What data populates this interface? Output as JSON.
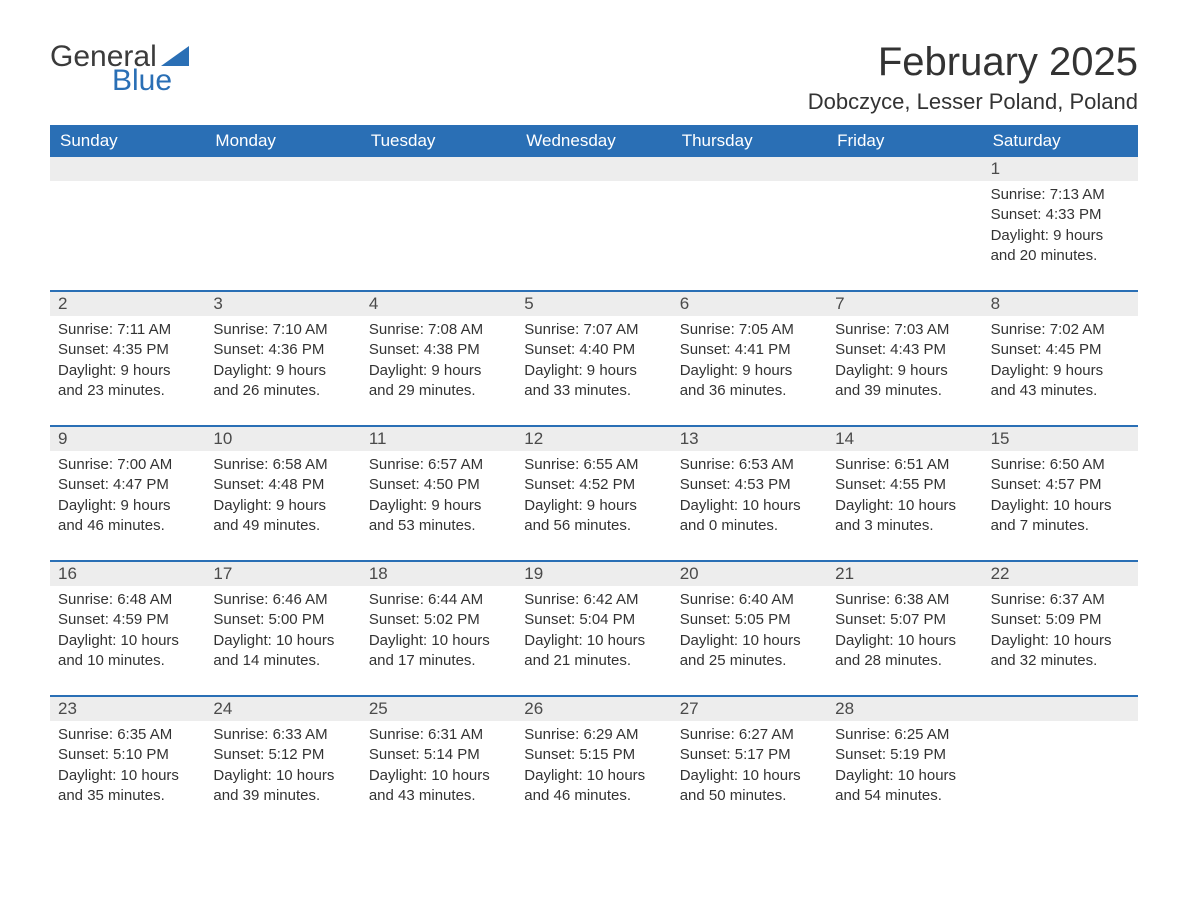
{
  "brand": {
    "general": "General",
    "blue": "Blue",
    "flag_color": "#2a6fb5"
  },
  "title": "February 2025",
  "location": "Dobczyce, Lesser Poland, Poland",
  "theme": {
    "header_bg": "#2a6fb5",
    "header_fg": "#ffffff",
    "band_bg": "#ededed",
    "rule_color": "#2a6fb5",
    "body_bg": "#ffffff",
    "text_color": "#333333",
    "title_fontsize": 40,
    "location_fontsize": 22,
    "dow_fontsize": 17,
    "daynum_fontsize": 17,
    "data_fontsize": 15
  },
  "dow": [
    "Sunday",
    "Monday",
    "Tuesday",
    "Wednesday",
    "Thursday",
    "Friday",
    "Saturday"
  ],
  "weeks": [
    [
      null,
      null,
      null,
      null,
      null,
      null,
      {
        "n": "1",
        "sunrise": "Sunrise: 7:13 AM",
        "sunset": "Sunset: 4:33 PM",
        "daylight1": "Daylight: 9 hours",
        "daylight2": "and 20 minutes."
      }
    ],
    [
      {
        "n": "2",
        "sunrise": "Sunrise: 7:11 AM",
        "sunset": "Sunset: 4:35 PM",
        "daylight1": "Daylight: 9 hours",
        "daylight2": "and 23 minutes."
      },
      {
        "n": "3",
        "sunrise": "Sunrise: 7:10 AM",
        "sunset": "Sunset: 4:36 PM",
        "daylight1": "Daylight: 9 hours",
        "daylight2": "and 26 minutes."
      },
      {
        "n": "4",
        "sunrise": "Sunrise: 7:08 AM",
        "sunset": "Sunset: 4:38 PM",
        "daylight1": "Daylight: 9 hours",
        "daylight2": "and 29 minutes."
      },
      {
        "n": "5",
        "sunrise": "Sunrise: 7:07 AM",
        "sunset": "Sunset: 4:40 PM",
        "daylight1": "Daylight: 9 hours",
        "daylight2": "and 33 minutes."
      },
      {
        "n": "6",
        "sunrise": "Sunrise: 7:05 AM",
        "sunset": "Sunset: 4:41 PM",
        "daylight1": "Daylight: 9 hours",
        "daylight2": "and 36 minutes."
      },
      {
        "n": "7",
        "sunrise": "Sunrise: 7:03 AM",
        "sunset": "Sunset: 4:43 PM",
        "daylight1": "Daylight: 9 hours",
        "daylight2": "and 39 minutes."
      },
      {
        "n": "8",
        "sunrise": "Sunrise: 7:02 AM",
        "sunset": "Sunset: 4:45 PM",
        "daylight1": "Daylight: 9 hours",
        "daylight2": "and 43 minutes."
      }
    ],
    [
      {
        "n": "9",
        "sunrise": "Sunrise: 7:00 AM",
        "sunset": "Sunset: 4:47 PM",
        "daylight1": "Daylight: 9 hours",
        "daylight2": "and 46 minutes."
      },
      {
        "n": "10",
        "sunrise": "Sunrise: 6:58 AM",
        "sunset": "Sunset: 4:48 PM",
        "daylight1": "Daylight: 9 hours",
        "daylight2": "and 49 minutes."
      },
      {
        "n": "11",
        "sunrise": "Sunrise: 6:57 AM",
        "sunset": "Sunset: 4:50 PM",
        "daylight1": "Daylight: 9 hours",
        "daylight2": "and 53 minutes."
      },
      {
        "n": "12",
        "sunrise": "Sunrise: 6:55 AM",
        "sunset": "Sunset: 4:52 PM",
        "daylight1": "Daylight: 9 hours",
        "daylight2": "and 56 minutes."
      },
      {
        "n": "13",
        "sunrise": "Sunrise: 6:53 AM",
        "sunset": "Sunset: 4:53 PM",
        "daylight1": "Daylight: 10 hours",
        "daylight2": "and 0 minutes."
      },
      {
        "n": "14",
        "sunrise": "Sunrise: 6:51 AM",
        "sunset": "Sunset: 4:55 PM",
        "daylight1": "Daylight: 10 hours",
        "daylight2": "and 3 minutes."
      },
      {
        "n": "15",
        "sunrise": "Sunrise: 6:50 AM",
        "sunset": "Sunset: 4:57 PM",
        "daylight1": "Daylight: 10 hours",
        "daylight2": "and 7 minutes."
      }
    ],
    [
      {
        "n": "16",
        "sunrise": "Sunrise: 6:48 AM",
        "sunset": "Sunset: 4:59 PM",
        "daylight1": "Daylight: 10 hours",
        "daylight2": "and 10 minutes."
      },
      {
        "n": "17",
        "sunrise": "Sunrise: 6:46 AM",
        "sunset": "Sunset: 5:00 PM",
        "daylight1": "Daylight: 10 hours",
        "daylight2": "and 14 minutes."
      },
      {
        "n": "18",
        "sunrise": "Sunrise: 6:44 AM",
        "sunset": "Sunset: 5:02 PM",
        "daylight1": "Daylight: 10 hours",
        "daylight2": "and 17 minutes."
      },
      {
        "n": "19",
        "sunrise": "Sunrise: 6:42 AM",
        "sunset": "Sunset: 5:04 PM",
        "daylight1": "Daylight: 10 hours",
        "daylight2": "and 21 minutes."
      },
      {
        "n": "20",
        "sunrise": "Sunrise: 6:40 AM",
        "sunset": "Sunset: 5:05 PM",
        "daylight1": "Daylight: 10 hours",
        "daylight2": "and 25 minutes."
      },
      {
        "n": "21",
        "sunrise": "Sunrise: 6:38 AM",
        "sunset": "Sunset: 5:07 PM",
        "daylight1": "Daylight: 10 hours",
        "daylight2": "and 28 minutes."
      },
      {
        "n": "22",
        "sunrise": "Sunrise: 6:37 AM",
        "sunset": "Sunset: 5:09 PM",
        "daylight1": "Daylight: 10 hours",
        "daylight2": "and 32 minutes."
      }
    ],
    [
      {
        "n": "23",
        "sunrise": "Sunrise: 6:35 AM",
        "sunset": "Sunset: 5:10 PM",
        "daylight1": "Daylight: 10 hours",
        "daylight2": "and 35 minutes."
      },
      {
        "n": "24",
        "sunrise": "Sunrise: 6:33 AM",
        "sunset": "Sunset: 5:12 PM",
        "daylight1": "Daylight: 10 hours",
        "daylight2": "and 39 minutes."
      },
      {
        "n": "25",
        "sunrise": "Sunrise: 6:31 AM",
        "sunset": "Sunset: 5:14 PM",
        "daylight1": "Daylight: 10 hours",
        "daylight2": "and 43 minutes."
      },
      {
        "n": "26",
        "sunrise": "Sunrise: 6:29 AM",
        "sunset": "Sunset: 5:15 PM",
        "daylight1": "Daylight: 10 hours",
        "daylight2": "and 46 minutes."
      },
      {
        "n": "27",
        "sunrise": "Sunrise: 6:27 AM",
        "sunset": "Sunset: 5:17 PM",
        "daylight1": "Daylight: 10 hours",
        "daylight2": "and 50 minutes."
      },
      {
        "n": "28",
        "sunrise": "Sunrise: 6:25 AM",
        "sunset": "Sunset: 5:19 PM",
        "daylight1": "Daylight: 10 hours",
        "daylight2": "and 54 minutes."
      },
      null
    ]
  ]
}
